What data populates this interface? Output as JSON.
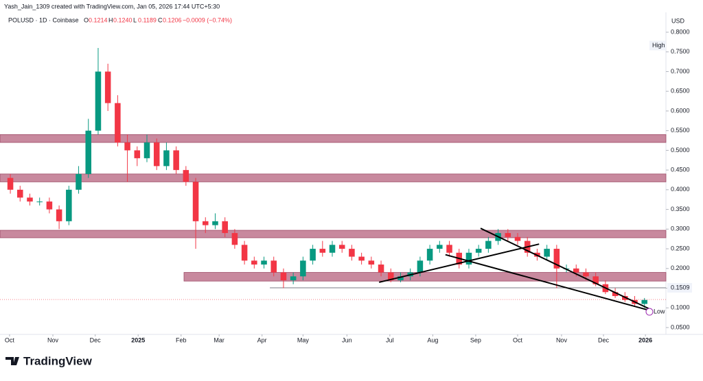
{
  "header": {
    "credit": "Yash_Jain_1309 created with TradingView.com, Jan 05, 2026 17:44 UTC+5:30",
    "symbol": "POLUSD · 1D · Coinbase",
    "ohlc": [
      {
        "key": "O",
        "value": "0.1214"
      },
      {
        "key": "H",
        "value": "0.1240"
      },
      {
        "key": "L",
        "value": "0.1189"
      },
      {
        "key": "C",
        "value": "0.1206"
      }
    ],
    "change": "−0.0009 (−0.74%)"
  },
  "footer": {
    "brand": "TradingView"
  },
  "chart_data": {
    "type": "candlestick",
    "currency": "USD",
    "categories": [
      null,
      null,
      null,
      null,
      null,
      null,
      null,
      null,
      null,
      null,
      null,
      null,
      null,
      null,
      null,
      null,
      null,
      null,
      null,
      null,
      null,
      null,
      null,
      null,
      null,
      null,
      null,
      null,
      null,
      null,
      null,
      null,
      null,
      null,
      null,
      null,
      null,
      null,
      null,
      null,
      null,
      null,
      null,
      null,
      null,
      null,
      null,
      null,
      null,
      null,
      null,
      null,
      null,
      null,
      null,
      null,
      null,
      null,
      null,
      null,
      null,
      null,
      null,
      null,
      null,
      null
    ],
    "open": [
      0.43,
      0.4,
      0.38,
      0.37,
      0.37,
      0.35,
      0.32,
      0.4,
      0.44,
      0.55,
      0.7,
      0.62,
      0.52,
      0.5,
      0.48,
      0.52,
      0.46,
      0.5,
      0.45,
      0.42,
      0.32,
      0.31,
      0.32,
      0.29,
      0.26,
      0.22,
      0.21,
      0.22,
      0.19,
      0.17,
      0.18,
      0.22,
      0.25,
      0.24,
      0.26,
      0.25,
      0.23,
      0.22,
      0.21,
      0.19,
      0.17,
      0.18,
      0.19,
      0.22,
      0.25,
      0.26,
      0.24,
      0.21,
      0.24,
      0.25,
      0.27,
      0.29,
      0.28,
      0.27,
      0.24,
      0.23,
      0.25,
      0.2,
      0.2,
      0.19,
      0.18,
      0.16,
      0.14,
      0.13,
      0.12,
      0.11
    ],
    "high": [
      0.44,
      0.41,
      0.39,
      0.38,
      0.38,
      0.36,
      0.41,
      0.46,
      0.58,
      0.76,
      0.72,
      0.64,
      0.54,
      0.51,
      0.54,
      0.53,
      0.52,
      0.51,
      0.46,
      0.43,
      0.33,
      0.34,
      0.33,
      0.3,
      0.27,
      0.23,
      0.23,
      0.23,
      0.2,
      0.19,
      0.23,
      0.26,
      0.27,
      0.27,
      0.27,
      0.26,
      0.24,
      0.23,
      0.22,
      0.2,
      0.19,
      0.2,
      0.23,
      0.26,
      0.27,
      0.27,
      0.25,
      0.25,
      0.26,
      0.28,
      0.3,
      0.3,
      0.29,
      0.28,
      0.25,
      0.26,
      0.26,
      0.21,
      0.21,
      0.2,
      0.19,
      0.17,
      0.15,
      0.14,
      0.13,
      0.125
    ],
    "low": [
      0.39,
      0.37,
      0.36,
      0.36,
      0.34,
      0.3,
      0.31,
      0.39,
      0.43,
      0.54,
      0.6,
      0.51,
      0.42,
      0.46,
      0.47,
      0.45,
      0.45,
      0.44,
      0.41,
      0.25,
      0.29,
      0.3,
      0.28,
      0.25,
      0.21,
      0.2,
      0.2,
      0.18,
      0.15,
      0.16,
      0.17,
      0.21,
      0.23,
      0.23,
      0.24,
      0.22,
      0.21,
      0.2,
      0.18,
      0.165,
      0.165,
      0.17,
      0.18,
      0.21,
      0.24,
      0.23,
      0.2,
      0.2,
      0.23,
      0.24,
      0.26,
      0.27,
      0.26,
      0.23,
      0.22,
      0.22,
      0.15,
      0.19,
      0.18,
      0.17,
      0.155,
      0.135,
      0.125,
      0.115,
      0.105,
      0.1
    ],
    "close": [
      0.4,
      0.38,
      0.37,
      0.37,
      0.35,
      0.32,
      0.4,
      0.44,
      0.55,
      0.7,
      0.62,
      0.52,
      0.5,
      0.48,
      0.52,
      0.46,
      0.5,
      0.45,
      0.42,
      0.32,
      0.31,
      0.32,
      0.29,
      0.26,
      0.22,
      0.21,
      0.22,
      0.19,
      0.17,
      0.18,
      0.22,
      0.25,
      0.24,
      0.26,
      0.25,
      0.23,
      0.22,
      0.21,
      0.19,
      0.17,
      0.18,
      0.19,
      0.22,
      0.25,
      0.26,
      0.24,
      0.21,
      0.24,
      0.25,
      0.27,
      0.29,
      0.28,
      0.27,
      0.24,
      0.23,
      0.25,
      0.2,
      0.2,
      0.19,
      0.18,
      0.16,
      0.14,
      0.13,
      0.12,
      0.11,
      0.12
    ],
    "up_color": "#089981",
    "down_color": "#f23645",
    "xlim": [
      -1.06,
      67.2
    ],
    "ylim": [
      0.0326,
      0.8435
    ],
    "xticks": [
      {
        "value": -0.08,
        "label": "Oct"
      },
      {
        "value": 4.36,
        "label": "Nov"
      },
      {
        "value": 8.7,
        "label": "Dec"
      },
      {
        "value": 13.1,
        "label": "2025"
      },
      {
        "value": 17.5,
        "label": "Feb"
      },
      {
        "value": 21.4,
        "label": "Mar"
      },
      {
        "value": 25.8,
        "label": "Apr"
      },
      {
        "value": 30,
        "label": "May"
      },
      {
        "value": 34.5,
        "label": "Jun"
      },
      {
        "value": 38.9,
        "label": "Jul"
      },
      {
        "value": 43.3,
        "label": "Aug"
      },
      {
        "value": 47.7,
        "label": "Sep"
      },
      {
        "value": 52,
        "label": "Oct"
      },
      {
        "value": 56.5,
        "label": "Nov"
      },
      {
        "value": 60.8,
        "label": "Dec"
      },
      {
        "value": 65.1,
        "label": "2026"
      }
    ],
    "yticks": [
      {
        "value": 0.8,
        "label": "0.8000"
      },
      {
        "value": 0.75,
        "label": "0.7500"
      },
      {
        "value": 0.7,
        "label": "0.7000"
      },
      {
        "value": 0.65,
        "label": "0.6500"
      },
      {
        "value": 0.6,
        "label": "0.6000"
      },
      {
        "value": 0.55,
        "label": "0.5500"
      },
      {
        "value": 0.5,
        "label": "0.5000"
      },
      {
        "value": 0.45,
        "label": "0.4500"
      },
      {
        "value": 0.4,
        "label": "0.4000"
      },
      {
        "value": 0.35,
        "label": "0.3500"
      },
      {
        "value": 0.3,
        "label": "0.3000"
      },
      {
        "value": 0.25,
        "label": "0.2500"
      },
      {
        "value": 0.2,
        "label": "0.2000"
      },
      {
        "value": 0.15,
        "label": "0.1500"
      },
      {
        "value": 0.1,
        "label": "0.1000"
      },
      {
        "value": 0.05,
        "label": "0.0500"
      }
    ],
    "zones": [
      {
        "x_from": -1.06,
        "from": 0.52,
        "to": 0.54
      },
      {
        "x_from": -1.06,
        "from": 0.42,
        "to": 0.44
      },
      {
        "x_from": -1.06,
        "from": 0.278,
        "to": 0.297
      },
      {
        "x_from": 17.8,
        "from": 0.168,
        "to": 0.19
      }
    ],
    "zone_color": "#b5627e",
    "trendlines": [
      {
        "x": [
          48.2,
          65.7
        ],
        "y": [
          0.302,
          0.095
        ]
      },
      {
        "x": [
          44.6,
          65.6
        ],
        "y": [
          0.235,
          0.093
        ]
      },
      {
        "x": [
          37.8,
          54.2
        ],
        "y": [
          0.165,
          0.262
        ]
      }
    ],
    "level": {
      "x_from": 26.6,
      "value": {
        "value": 0.1509,
        "label": "0.1509"
      }
    },
    "high_label": {
      "value": 0.7662,
      "label": "High"
    },
    "low_label": {
      "value": 0.09,
      "label": "Low"
    }
  }
}
